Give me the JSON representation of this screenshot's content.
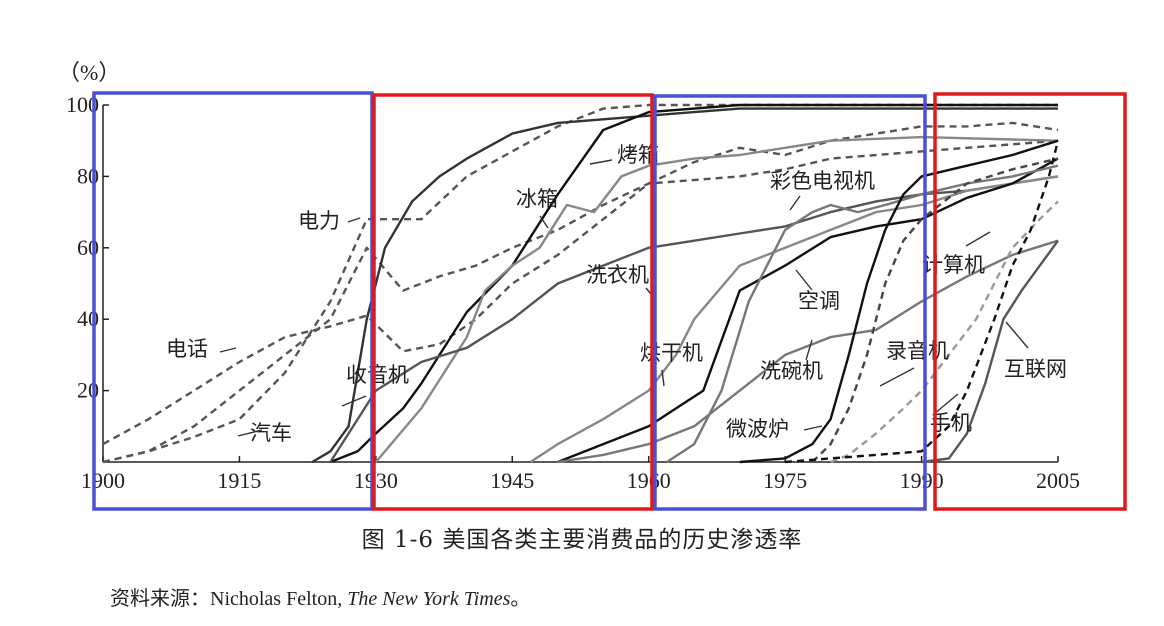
{
  "chart_data": {
    "type": "line",
    "unit_label": "（%）",
    "xlim": [
      1900,
      2005
    ],
    "ylim": [
      0,
      100
    ],
    "x_ticks": [
      "1900",
      "1915",
      "1930",
      "1945",
      "1960",
      "1975",
      "1990",
      "2005"
    ],
    "y_ticks": [
      "20",
      "40",
      "60",
      "80",
      "100"
    ],
    "series": [
      {
        "name": "电话",
        "style": "dashed",
        "color": "#555555",
        "points": [
          [
            1900,
            5
          ],
          [
            1905,
            12
          ],
          [
            1910,
            20
          ],
          [
            1915,
            28
          ],
          [
            1920,
            35
          ],
          [
            1925,
            38
          ],
          [
            1929,
            41
          ],
          [
            1933,
            31
          ],
          [
            1937,
            33
          ],
          [
            1941,
            40
          ],
          [
            1945,
            50
          ],
          [
            1950,
            58
          ],
          [
            1955,
            68
          ],
          [
            1960,
            78
          ],
          [
            1965,
            84
          ],
          [
            1970,
            88
          ],
          [
            1975,
            86
          ],
          [
            1980,
            90
          ],
          [
            1985,
            92
          ],
          [
            1990,
            94
          ],
          [
            1995,
            94
          ],
          [
            2000,
            95
          ],
          [
            2005,
            93
          ]
        ]
      },
      {
        "name": "汽车",
        "style": "dashed",
        "color": "#555555",
        "points": [
          [
            1900,
            0
          ],
          [
            1905,
            3
          ],
          [
            1910,
            10
          ],
          [
            1915,
            20
          ],
          [
            1920,
            30
          ],
          [
            1925,
            40
          ],
          [
            1929,
            60
          ],
          [
            1933,
            48
          ],
          [
            1937,
            52
          ],
          [
            1941,
            55
          ],
          [
            1945,
            60
          ],
          [
            1950,
            65
          ],
          [
            1955,
            72
          ],
          [
            1960,
            78
          ],
          [
            1965,
            79
          ],
          [
            1970,
            80
          ],
          [
            1975,
            82
          ],
          [
            1980,
            85
          ],
          [
            1985,
            86
          ],
          [
            1990,
            87
          ],
          [
            1995,
            88
          ],
          [
            2000,
            89
          ],
          [
            2005,
            90
          ]
        ]
      },
      {
        "name": "电力",
        "style": "dashed",
        "color": "#555555",
        "points": [
          [
            1900,
            0
          ],
          [
            1905,
            3
          ],
          [
            1910,
            7
          ],
          [
            1915,
            12
          ],
          [
            1920,
            25
          ],
          [
            1925,
            45
          ],
          [
            1929,
            68
          ],
          [
            1932,
            68
          ],
          [
            1935,
            68
          ],
          [
            1940,
            80
          ],
          [
            1945,
            87
          ],
          [
            1950,
            94
          ],
          [
            1955,
            99
          ],
          [
            1960,
            100
          ],
          [
            2005,
            100
          ]
        ]
      },
      {
        "name": "收音机",
        "style": "solid",
        "color": "#333333",
        "points": [
          [
            1923,
            0
          ],
          [
            1925,
            3
          ],
          [
            1927,
            10
          ],
          [
            1929,
            40
          ],
          [
            1931,
            60
          ],
          [
            1934,
            73
          ],
          [
            1937,
            80
          ],
          [
            1940,
            85
          ],
          [
            1945,
            92
          ],
          [
            1950,
            95
          ],
          [
            1955,
            96
          ],
          [
            1960,
            97
          ],
          [
            1965,
            98
          ],
          [
            1970,
            99
          ],
          [
            2005,
            99
          ]
        ]
      },
      {
        "name": "冰箱",
        "style": "solid",
        "color": "#111111",
        "points": [
          [
            1925,
            0
          ],
          [
            1928,
            3
          ],
          [
            1930,
            8
          ],
          [
            1933,
            15
          ],
          [
            1935,
            22
          ],
          [
            1937,
            30
          ],
          [
            1940,
            42
          ],
          [
            1945,
            55
          ],
          [
            1950,
            75
          ],
          [
            1955,
            93
          ],
          [
            1960,
            98
          ],
          [
            1965,
            99
          ],
          [
            1970,
            100
          ],
          [
            2005,
            100
          ]
        ]
      },
      {
        "name": "烤箱",
        "style": "solid",
        "color": "#888888",
        "points": [
          [
            1930,
            0
          ],
          [
            1935,
            15
          ],
          [
            1940,
            35
          ],
          [
            1942,
            48
          ],
          [
            1945,
            55
          ],
          [
            1948,
            60
          ],
          [
            1951,
            72
          ],
          [
            1954,
            70
          ],
          [
            1957,
            80
          ],
          [
            1960,
            83
          ],
          [
            1965,
            85
          ],
          [
            1970,
            86
          ],
          [
            1975,
            88
          ],
          [
            1980,
            90
          ],
          [
            1990,
            91
          ],
          [
            2005,
            90
          ]
        ]
      },
      {
        "name": "洗衣机",
        "style": "solid",
        "color": "#555555",
        "points": [
          [
            1925,
            0
          ],
          [
            1930,
            20
          ],
          [
            1935,
            28
          ],
          [
            1940,
            32
          ],
          [
            1945,
            40
          ],
          [
            1950,
            50
          ],
          [
            1955,
            55
          ],
          [
            1960,
            60
          ],
          [
            1965,
            62
          ],
          [
            1970,
            64
          ],
          [
            1975,
            66
          ],
          [
            1980,
            70
          ],
          [
            1985,
            73
          ],
          [
            1990,
            75
          ],
          [
            1995,
            76
          ],
          [
            2000,
            78
          ],
          [
            2005,
            80
          ]
        ]
      },
      {
        "name": "烘干机",
        "style": "solid",
        "color": "#888888",
        "points": [
          [
            1947,
            0
          ],
          [
            1950,
            5
          ],
          [
            1955,
            12
          ],
          [
            1960,
            20
          ],
          [
            1963,
            30
          ],
          [
            1965,
            40
          ],
          [
            1970,
            55
          ],
          [
            1975,
            60
          ],
          [
            1980,
            65
          ],
          [
            1985,
            70
          ],
          [
            1990,
            72
          ],
          [
            1995,
            76
          ],
          [
            2000,
            78
          ],
          [
            2005,
            80
          ]
        ]
      },
      {
        "name": "空调",
        "style": "solid",
        "color": "#111111",
        "points": [
          [
            1950,
            0
          ],
          [
            1955,
            5
          ],
          [
            1960,
            10
          ],
          [
            1963,
            15
          ],
          [
            1966,
            20
          ],
          [
            1970,
            48
          ],
          [
            1975,
            55
          ],
          [
            1980,
            63
          ],
          [
            1985,
            66
          ],
          [
            1990,
            68
          ],
          [
            1995,
            74
          ],
          [
            2000,
            78
          ],
          [
            2005,
            85
          ]
        ]
      },
      {
        "name": "彩色电视机",
        "style": "solid",
        "color": "#777777",
        "points": [
          [
            1962,
            0
          ],
          [
            1965,
            5
          ],
          [
            1968,
            20
          ],
          [
            1971,
            45
          ],
          [
            1975,
            65
          ],
          [
            1978,
            70
          ],
          [
            1980,
            72
          ],
          [
            1983,
            70
          ],
          [
            1986,
            72
          ],
          [
            1990,
            75
          ],
          [
            1995,
            78
          ],
          [
            2000,
            80
          ],
          [
            2005,
            83
          ]
        ]
      },
      {
        "name": "洗碗机",
        "style": "solid",
        "color": "#777777",
        "points": [
          [
            1950,
            0
          ],
          [
            1955,
            2
          ],
          [
            1960,
            5
          ],
          [
            1965,
            10
          ],
          [
            1970,
            20
          ],
          [
            1975,
            30
          ],
          [
            1980,
            35
          ],
          [
            1985,
            37
          ],
          [
            1990,
            45
          ],
          [
            1995,
            52
          ],
          [
            2000,
            58
          ],
          [
            2005,
            62
          ]
        ]
      },
      {
        "name": "录音机",
        "style": "dashed",
        "color": "#444444",
        "points": [
          [
            1978,
            0
          ],
          [
            1980,
            5
          ],
          [
            1982,
            15
          ],
          [
            1984,
            30
          ],
          [
            1986,
            50
          ],
          [
            1988,
            62
          ],
          [
            1990,
            68
          ],
          [
            1995,
            78
          ],
          [
            2000,
            82
          ],
          [
            2005,
            85
          ]
        ]
      },
      {
        "name": "微波炉",
        "style": "solid",
        "color": "#111111",
        "points": [
          [
            1970,
            0
          ],
          [
            1975,
            1
          ],
          [
            1978,
            5
          ],
          [
            1980,
            12
          ],
          [
            1982,
            30
          ],
          [
            1984,
            50
          ],
          [
            1986,
            65
          ],
          [
            1988,
            75
          ],
          [
            1990,
            80
          ],
          [
            1995,
            83
          ],
          [
            2000,
            86
          ],
          [
            2005,
            90
          ]
        ]
      },
      {
        "name": "计算机",
        "style": "dashed",
        "color": "#999999",
        "points": [
          [
            1980,
            0
          ],
          [
            1982,
            2
          ],
          [
            1985,
            8
          ],
          [
            1988,
            15
          ],
          [
            1990,
            20
          ],
          [
            1993,
            30
          ],
          [
            1996,
            40
          ],
          [
            1998,
            50
          ],
          [
            2000,
            60
          ],
          [
            2003,
            68
          ],
          [
            2005,
            73
          ]
        ]
      },
      {
        "name": "互联网",
        "style": "solid",
        "color": "#555555",
        "points": [
          [
            1990,
            0
          ],
          [
            1993,
            1
          ],
          [
            1995,
            8
          ],
          [
            1997,
            22
          ],
          [
            1999,
            40
          ],
          [
            2001,
            48
          ],
          [
            2003,
            55
          ],
          [
            2005,
            62
          ]
        ]
      },
      {
        "name": "手机",
        "style": "dashed",
        "color": "#111111",
        "points": [
          [
            1975,
            0
          ],
          [
            1980,
            1
          ],
          [
            1985,
            2
          ],
          [
            1990,
            3
          ],
          [
            1993,
            10
          ],
          [
            1995,
            20
          ],
          [
            1998,
            40
          ],
          [
            2000,
            55
          ],
          [
            2002,
            65
          ],
          [
            2004,
            80
          ],
          [
            2005,
            90
          ]
        ]
      }
    ]
  },
  "caption": "图 1-6    美国各类主要消费品的历史渗透率",
  "source": {
    "prefix": "资料来源：",
    "author": "Nicholas Felton, ",
    "publication": "The New York Times",
    "suffix": "。"
  },
  "highlight_colors": {
    "blue": "#4a4fd6",
    "red": "#e01a1a"
  }
}
